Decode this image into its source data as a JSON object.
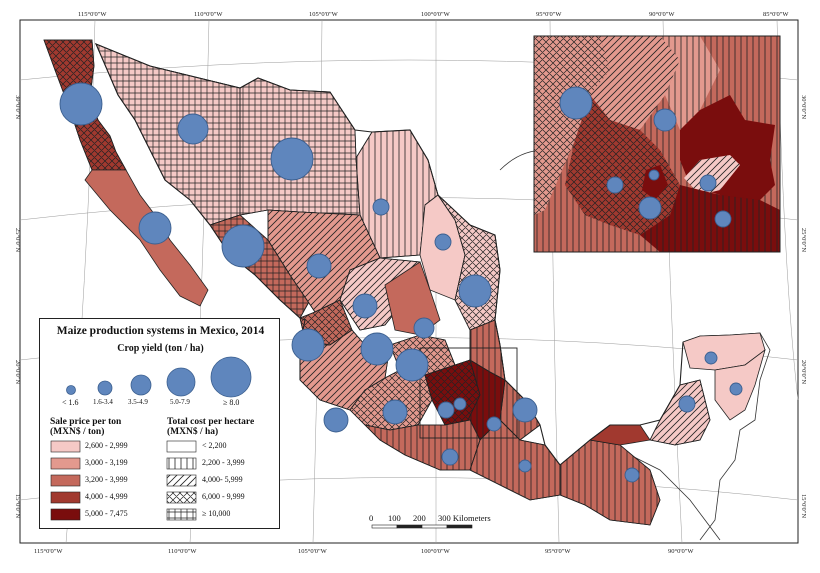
{
  "legend": {
    "title": "Maize production systems in Mexico, 2014",
    "yield_title": "Crop yield (ton / ha)",
    "yield_classes": [
      "< 1.6",
      "1.6-3.4",
      "3.5-4.9",
      "5.0-7.9",
      "≥ 8.0"
    ],
    "price_title_1": "Sale price per ton",
    "price_title_2": "(MXN$ / ton)",
    "price_classes": [
      {
        "label": "2,600 - 2,999",
        "color": "#f5c9c6"
      },
      {
        "label": "3,000 - 3,199",
        "color": "#e3998e"
      },
      {
        "label": "3,200 - 3,999",
        "color": "#c4695c"
      },
      {
        "label": "4,000 - 4,999",
        "color": "#a1392f"
      },
      {
        "label": "5,000 - 7,475",
        "color": "#7a0d0d"
      }
    ],
    "cost_title_1": "Total cost per hectare",
    "cost_title_2": "(MXN$ / ha)",
    "cost_classes": [
      {
        "label": "< 2,200",
        "pattern": "none"
      },
      {
        "label": "2,200 - 3,999",
        "pattern": "vertical"
      },
      {
        "label": "4,000- 5,999",
        "pattern": "diagonal"
      },
      {
        "label": "6,000 - 9,999",
        "pattern": "crosshatch"
      },
      {
        "label": "≥ 10,000",
        "pattern": "grid"
      }
    ]
  },
  "scale": {
    "labels": [
      "0",
      "100",
      "200",
      "300 Kilometers"
    ]
  },
  "graticule": {
    "top_labels": [
      "115°0'0\"W",
      "110°0'0\"W",
      "105°0'0\"W",
      "100°0'0\"W",
      "95°0'0\"W",
      "90°0'0\"W",
      "85°0'0\"W"
    ],
    "bottom_labels": [
      "115°0'0\"W",
      "110°0'0\"W",
      "105°0'0\"W",
      "100°0'0\"W",
      "95°0'0\"W",
      "90°0'0\"W"
    ],
    "left_labels": [
      "30°0'0\"N",
      "25°0'0\"N",
      "20°0'0\"N",
      "15°0'0\"N"
    ],
    "right_labels": [
      "30°0'0\"N",
      "25°0'0\"N",
      "20°0'0\"N",
      "15°0'0\"N"
    ]
  },
  "colors": {
    "bubble": "#5f86bd",
    "bubble_stroke": "#3b5f8f",
    "border": "#222222"
  }
}
